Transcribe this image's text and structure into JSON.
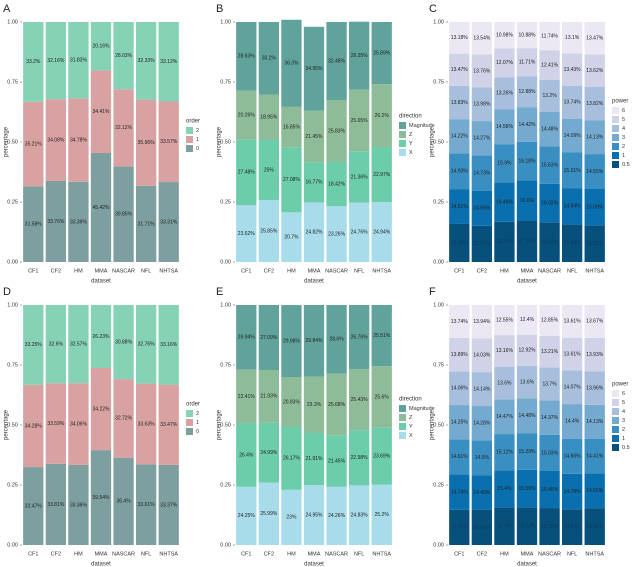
{
  "chart_data": [
    {
      "type": "bar",
      "stacked": true,
      "label": "A",
      "xlabel": "dataset",
      "ylabel": "percentage",
      "legend_title": "order",
      "categories": [
        "CF1",
        "CF2",
        "HM",
        "MMA",
        "NASCAR",
        "NFL",
        "NHTSA"
      ],
      "ylim": [
        0,
        1
      ],
      "yticks": [
        {
          "value": 0,
          "label": "0.00"
        },
        {
          "value": 0.25,
          "label": "0.25"
        },
        {
          "value": 0.5,
          "label": "0.50"
        },
        {
          "value": 0.75,
          "label": "0.75"
        },
        {
          "value": 1,
          "label": "1.00"
        }
      ],
      "series": [
        {
          "name": "2",
          "color": "#86d2b5",
          "values": [
            0.332,
            0.3216,
            0.3183,
            0.2016,
            0.2803,
            0.3233,
            0.3312
          ],
          "value_labels": [
            "33.2%",
            "32.16%",
            "31.83%",
            "20.16%",
            "28.03%",
            "32.33%",
            "33.12%"
          ]
        },
        {
          "name": "1",
          "color": "#d9a2a2",
          "values": [
            0.3521,
            0.3408,
            0.3478,
            0.3441,
            0.3212,
            0.3596,
            0.3357
          ],
          "value_labels": [
            "35.21%",
            "34.08%",
            "34.78%",
            "34.41%",
            "32.12%",
            "35.96%",
            "33.57%"
          ]
        },
        {
          "name": "0",
          "color": "#7d9f9f",
          "values": [
            0.3158,
            0.3376,
            0.3339,
            0.4542,
            0.3985,
            0.3171,
            0.3331
          ],
          "value_labels": [
            "31.58%",
            "33.76%",
            "33.39%",
            "45.42%",
            "39.85%",
            "31.71%",
            "33.31%"
          ]
        }
      ]
    },
    {
      "type": "bar",
      "stacked": true,
      "label": "B",
      "xlabel": "dataset",
      "ylabel": "percentage",
      "legend_title": "direction",
      "categories": [
        "CF1",
        "CF2",
        "HM",
        "MMA",
        "NASCAR",
        "NFL",
        "NHTSA"
      ],
      "ylim": [
        0,
        1
      ],
      "yticks": [
        {
          "value": 0,
          "label": "0.00"
        },
        {
          "value": 0.25,
          "label": "0.25"
        },
        {
          "value": 0.5,
          "label": "0.50"
        },
        {
          "value": 0.75,
          "label": "0.75"
        },
        {
          "value": 1,
          "label": "1.00"
        }
      ],
      "series": [
        {
          "name": "Magnitude",
          "color": "#5fa39b",
          "values": [
            0.2863,
            0.302,
            0.363,
            0.3495,
            0.3248,
            0.2835,
            0.2589
          ],
          "value_labels": [
            "28.63%",
            "30.2%",
            "36.3%",
            "34.95%",
            "32.48%",
            "28.35%",
            "25.89%"
          ]
        },
        {
          "name": "Z",
          "color": "#8fbc98",
          "values": [
            0.2026,
            0.1895,
            0.1685,
            0.2145,
            0.2583,
            0.2565,
            0.262
          ],
          "value_labels": [
            "20.26%",
            "18.95%",
            "16.85%",
            "21.45%",
            "25.83%",
            "25.65%",
            "26.2%"
          ]
        },
        {
          "name": "Y",
          "color": "#6ccdaa",
          "values": [
            0.2748,
            0.25,
            0.2708,
            0.1677,
            0.1842,
            0.2136,
            0.2297
          ],
          "value_labels": [
            "27.48%",
            "25%",
            "27.08%",
            "16.77%",
            "18.42%",
            "21.36%",
            "22.97%"
          ]
        },
        {
          "name": "X",
          "color": "#a8dceb",
          "values": [
            0.2362,
            0.2585,
            0.207,
            0.2482,
            0.2326,
            0.2476,
            0.2494
          ],
          "value_labels": [
            "23.62%",
            "25.85%",
            "20.7%",
            "24.82%",
            "23.26%",
            "24.76%",
            "24.94%"
          ]
        }
      ]
    },
    {
      "type": "bar",
      "stacked": true,
      "label": "C",
      "xlabel": "dataset",
      "ylabel": "percentage",
      "legend_title": "power",
      "categories": [
        "CF1",
        "CF2",
        "HM",
        "MMA",
        "NASCAR",
        "NFL",
        "NHTSA"
      ],
      "ylim": [
        0,
        1
      ],
      "yticks": [
        {
          "value": 0,
          "label": "0.00"
        },
        {
          "value": 0.25,
          "label": "0.25"
        },
        {
          "value": 0.5,
          "label": "0.50"
        },
        {
          "value": 0.75,
          "label": "0.75"
        },
        {
          "value": 1,
          "label": "1.00"
        }
      ],
      "series": [
        {
          "name": "6",
          "color": "#ebe8f3",
          "values": [
            0.1318,
            0.1354,
            0.1098,
            0.1088,
            0.1174,
            0.131,
            0.1347
          ],
          "value_labels": [
            "13.18%",
            "13.54%",
            "10.98%",
            "10.88%",
            "11.74%",
            "13.1%",
            "13.47%"
          ]
        },
        {
          "name": "5",
          "color": "#d0d2e7",
          "values": [
            0.1347,
            0.1376,
            0.1207,
            0.1171,
            0.1241,
            0.1343,
            0.1362
          ],
          "value_labels": [
            "13.47%",
            "13.76%",
            "12.07%",
            "11.71%",
            "12.41%",
            "13.43%",
            "13.62%"
          ]
        },
        {
          "name": "4",
          "color": "#a7bfdc",
          "values": [
            0.1383,
            0.1398,
            0.1326,
            0.1288,
            0.132,
            0.1374,
            0.1382
          ],
          "value_labels": [
            "13.83%",
            "13.98%",
            "13.26%",
            "12.88%",
            "13.2%",
            "13.74%",
            "13.82%"
          ]
        },
        {
          "name": "3",
          "color": "#74a9d0",
          "values": [
            0.1422,
            0.1427,
            0.1458,
            0.1442,
            0.1448,
            0.1409,
            0.1413
          ],
          "value_labels": [
            "14.22%",
            "14.27%",
            "14.58%",
            "14.42%",
            "14.48%",
            "14.09%",
            "14.13%"
          ]
        },
        {
          "name": "2",
          "color": "#3a8fc2",
          "values": [
            0.1493,
            0.1473,
            0.159,
            0.1618,
            0.1563,
            0.1501,
            0.1455
          ],
          "value_labels": [
            "14.93%",
            "14.73%",
            "15.9%",
            "16.18%",
            "15.63%",
            "15.01%",
            "14.55%"
          ]
        },
        {
          "name": "1",
          "color": "#0a6fae",
          "values": [
            0.1451,
            0.1465,
            0.1646,
            0.166,
            0.1602,
            0.1494,
            0.1509
          ],
          "value_labels": [
            "14.51%",
            "14.65%",
            "16.46%",
            "16.6%",
            "16.02%",
            "14.94%",
            "15.09%"
          ]
        },
        {
          "name": "0.5",
          "color": "#07507c",
          "values": [
            0.1586,
            0.1507,
            0.1675,
            0.1733,
            0.1652,
            0.1569,
            0.1532
          ],
          "value_labels": [
            "15.86%",
            "15.07%",
            "16.75%",
            "17.33%",
            "16.52%",
            "15.69%",
            "15.32%"
          ]
        }
      ]
    },
    {
      "type": "bar",
      "stacked": true,
      "label": "D",
      "xlabel": "dataset",
      "ylabel": "percentage",
      "legend_title": "order",
      "categories": [
        "CF1",
        "CF2",
        "HM",
        "MMA",
        "NASCAR",
        "NFL",
        "NHTSA"
      ],
      "ylim": [
        0,
        1
      ],
      "yticks": [
        {
          "value": 0,
          "label": "0.00"
        },
        {
          "value": 0.25,
          "label": "0.25"
        },
        {
          "value": 0.5,
          "label": "0.50"
        },
        {
          "value": 0.75,
          "label": "0.75"
        },
        {
          "value": 1,
          "label": "1.00"
        }
      ],
      "series": [
        {
          "name": "2",
          "color": "#86d2b5",
          "values": [
            0.3325,
            0.326,
            0.3257,
            0.2623,
            0.3088,
            0.3276,
            0.3316
          ],
          "value_labels": [
            "33.25%",
            "32.6%",
            "32.57%",
            "26.23%",
            "30.88%",
            "32.76%",
            "33.16%"
          ]
        },
        {
          "name": "1",
          "color": "#d9a2a2",
          "values": [
            0.3428,
            0.3359,
            0.3406,
            0.3422,
            0.3272,
            0.3363,
            0.3347
          ],
          "value_labels": [
            "34.28%",
            "33.59%",
            "34.06%",
            "34.22%",
            "32.72%",
            "33.63%",
            "33.47%"
          ]
        },
        {
          "name": "0",
          "color": "#7d9f9f",
          "values": [
            0.3247,
            0.3381,
            0.3336,
            0.3954,
            0.364,
            0.3361,
            0.3337
          ],
          "value_labels": [
            "32.47%",
            "33.81%",
            "33.36%",
            "39.54%",
            "36.4%",
            "33.61%",
            "33.37%"
          ]
        }
      ]
    },
    {
      "type": "bar",
      "stacked": true,
      "label": "E",
      "xlabel": "dataset",
      "ylabel": "percentage",
      "legend_title": "direction",
      "categories": [
        "CF1",
        "CF2",
        "HM",
        "MMA",
        "NASCAR",
        "NFL",
        "NHTSA"
      ],
      "ylim": [
        0,
        1
      ],
      "yticks": [
        {
          "value": 0,
          "label": "0.00"
        },
        {
          "value": 0.25,
          "label": "0.25"
        },
        {
          "value": 0.5,
          "label": "0.50"
        },
        {
          "value": 0.75,
          "label": "0.75"
        },
        {
          "value": 1,
          "label": "1.00"
        }
      ],
      "series": [
        {
          "name": "Magnitude",
          "color": "#5fa39b",
          "values": [
            0.2694,
            0.2709,
            0.2998,
            0.2984,
            0.286,
            0.2676,
            0.2551
          ],
          "value_labels": [
            "26.94%",
            "27.09%",
            "29.98%",
            "29.84%",
            "28.6%",
            "26.76%",
            "25.51%"
          ]
        },
        {
          "name": "Z",
          "color": "#8fbc98",
          "values": [
            0.2241,
            0.2193,
            0.2083,
            0.233,
            0.2568,
            0.2543,
            0.256
          ],
          "value_labels": [
            "22.41%",
            "21.93%",
            "20.83%",
            "23.3%",
            "25.68%",
            "25.43%",
            "25.6%"
          ]
        },
        {
          "name": "Y",
          "color": "#6ccdaa",
          "values": [
            0.264,
            0.2499,
            0.2617,
            0.2191,
            0.2145,
            0.2298,
            0.2369
          ],
          "value_labels": [
            "26.4%",
            "24.99%",
            "26.17%",
            "21.91%",
            "21.45%",
            "22.98%",
            "23.69%"
          ]
        },
        {
          "name": "X",
          "color": "#a8dceb",
          "values": [
            0.2425,
            0.2599,
            0.23,
            0.2495,
            0.2426,
            0.2483,
            0.252
          ],
          "value_labels": [
            "24.25%",
            "25.99%",
            "23%",
            "24.95%",
            "24.26%",
            "24.83%",
            "25.2%"
          ]
        }
      ]
    },
    {
      "type": "bar",
      "stacked": true,
      "label": "F",
      "xlabel": "dataset",
      "ylabel": "percentage",
      "legend_title": "power",
      "categories": [
        "CF1",
        "CF2",
        "HM",
        "MMA",
        "NASCAR",
        "NFL",
        "NHTSA"
      ],
      "ylim": [
        0,
        1
      ],
      "yticks": [
        {
          "value": 0,
          "label": "0.00"
        },
        {
          "value": 0.25,
          "label": "0.25"
        },
        {
          "value": 0.5,
          "label": "0.50"
        },
        {
          "value": 0.75,
          "label": "0.75"
        },
        {
          "value": 1,
          "label": "1.00"
        }
      ],
      "series": [
        {
          "name": "6",
          "color": "#ebe8f3",
          "values": [
            0.1374,
            0.1394,
            0.1255,
            0.124,
            0.1285,
            0.1361,
            0.1367
          ],
          "value_labels": [
            "13.74%",
            "13.94%",
            "12.55%",
            "12.4%",
            "12.85%",
            "13.61%",
            "13.67%"
          ]
        },
        {
          "name": "5",
          "color": "#d0d2e7",
          "values": [
            0.1389,
            0.1403,
            0.1316,
            0.1292,
            0.1321,
            0.1361,
            0.1393
          ],
          "value_labels": [
            "13.89%",
            "14.03%",
            "13.16%",
            "12.92%",
            "13.21%",
            "13.61%",
            "13.93%"
          ]
        },
        {
          "name": "4",
          "color": "#a7bfdc",
          "values": [
            0.1406,
            0.1414,
            0.136,
            0.136,
            0.137,
            0.1407,
            0.1396
          ],
          "value_labels": [
            "14.06%",
            "14.14%",
            "13.6%",
            "13.6%",
            "13.7%",
            "14.07%",
            "13.96%"
          ]
        },
        {
          "name": "3",
          "color": "#74a9d0",
          "values": [
            0.1425,
            0.1428,
            0.1447,
            0.1448,
            0.1437,
            0.144,
            0.1413
          ],
          "value_labels": [
            "14.25%",
            "14.28%",
            "14.47%",
            "14.48%",
            "14.37%",
            "14.4%",
            "14.13%"
          ]
        },
        {
          "name": "2",
          "color": "#3a8fc2",
          "values": [
            0.1461,
            0.145,
            0.1512,
            0.1529,
            0.1503,
            0.1466,
            0.1441
          ],
          "value_labels": [
            "14.61%",
            "14.5%",
            "15.12%",
            "15.29%",
            "15.03%",
            "14.66%",
            "14.41%"
          ]
        },
        {
          "name": "1",
          "color": "#0a6fae",
          "values": [
            0.1474,
            0.1449,
            0.154,
            0.1559,
            0.1545,
            0.1478,
            0.1455
          ],
          "value_labels": [
            "14.74%",
            "14.49%",
            "15.4%",
            "15.59%",
            "15.45%",
            "14.78%",
            "14.55%"
          ]
        },
        {
          "name": "0.5",
          "color": "#07507c",
          "values": [
            0.1471,
            0.1462,
            0.157,
            0.1572,
            0.1539,
            0.1487,
            0.1535
          ],
          "value_labels": [
            "14.71%",
            "14.62%",
            "15.7%",
            "15.72%",
            "15.39%",
            "14.87%",
            "15.35%"
          ]
        }
      ]
    }
  ]
}
